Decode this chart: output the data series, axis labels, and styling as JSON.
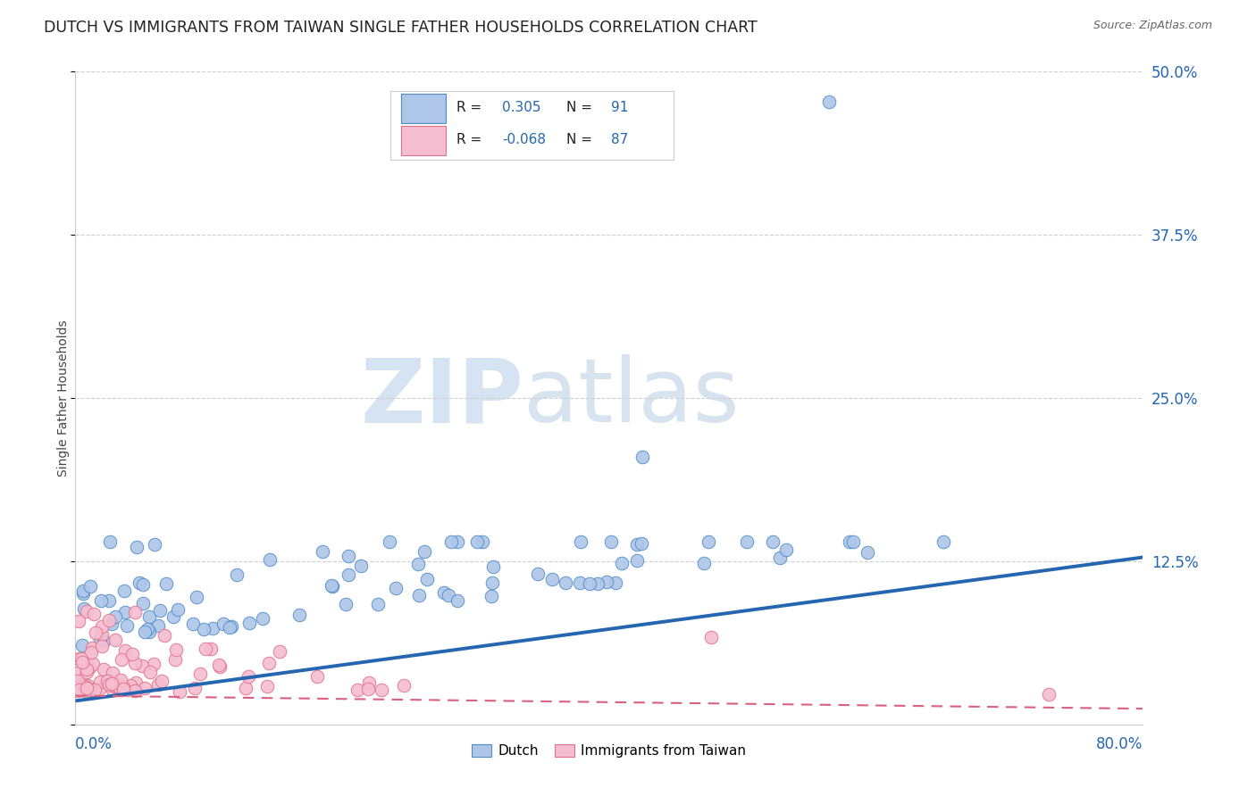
{
  "title": "DUTCH VS IMMIGRANTS FROM TAIWAN SINGLE FATHER HOUSEHOLDS CORRELATION CHART",
  "source": "Source: ZipAtlas.com",
  "ylabel": "Single Father Households",
  "xlim": [
    0.0,
    0.8
  ],
  "ylim": [
    0.0,
    0.5
  ],
  "yticks": [
    0.0,
    0.125,
    0.25,
    0.375,
    0.5
  ],
  "yticklabels": [
    "",
    "12.5%",
    "25.0%",
    "37.5%",
    "50.0%"
  ],
  "dutch_color": "#aec6e8",
  "dutch_edge_color": "#4e8cc7",
  "taiwan_color": "#f5bdd0",
  "taiwan_edge_color": "#e0708a",
  "dutch_line_color": "#2466b0",
  "taiwan_line_color": "#d96080",
  "dutch_R": 0.305,
  "dutch_N": 91,
  "taiwan_R": -0.068,
  "taiwan_N": 87,
  "legend_label_dutch": "Dutch",
  "legend_label_taiwan": "Immigrants from Taiwan",
  "watermark_zip": "ZIP",
  "watermark_atlas": "atlas",
  "background_color": "#ffffff",
  "grid_color": "#d0d0d0",
  "tick_color": "#2466b0",
  "title_color": "#222222",
  "ylabel_color": "#444444"
}
